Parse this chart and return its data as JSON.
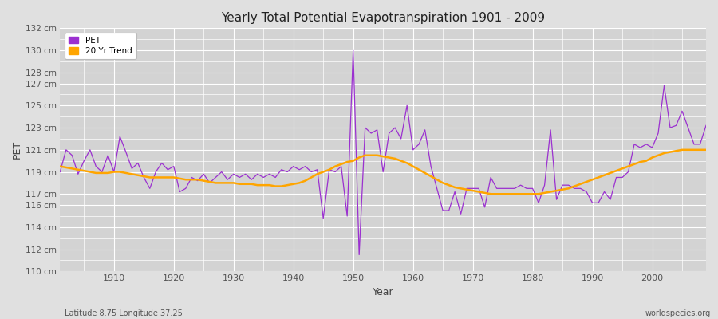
{
  "title": "Yearly Total Potential Evapotranspiration 1901 - 2009",
  "xlabel": "Year",
  "ylabel": "PET",
  "footnote_left": "Latitude 8.75 Longitude 37.25",
  "footnote_right": "worldspecies.org",
  "pet_color": "#9B30D0",
  "trend_color": "#FFA500",
  "fig_bg_color": "#E0E0E0",
  "plot_bg_color": "#D3D3D3",
  "grid_color": "#FFFFFF",
  "ylim": [
    110,
    132
  ],
  "yticks": [
    110,
    112,
    114,
    116,
    117,
    119,
    121,
    123,
    125,
    127,
    128,
    130,
    132
  ],
  "xlim": [
    1901,
    2009
  ],
  "xticks": [
    1910,
    1920,
    1930,
    1940,
    1950,
    1960,
    1970,
    1980,
    1990,
    2000
  ],
  "years": [
    1901,
    1902,
    1903,
    1904,
    1905,
    1906,
    1907,
    1908,
    1909,
    1910,
    1911,
    1912,
    1913,
    1914,
    1915,
    1916,
    1917,
    1918,
    1919,
    1920,
    1921,
    1922,
    1923,
    1924,
    1925,
    1926,
    1927,
    1928,
    1929,
    1930,
    1931,
    1932,
    1933,
    1934,
    1935,
    1936,
    1937,
    1938,
    1939,
    1940,
    1941,
    1942,
    1943,
    1944,
    1945,
    1946,
    1947,
    1948,
    1949,
    1950,
    1951,
    1952,
    1953,
    1954,
    1955,
    1956,
    1957,
    1958,
    1959,
    1960,
    1961,
    1962,
    1963,
    1964,
    1965,
    1966,
    1967,
    1968,
    1969,
    1970,
    1971,
    1972,
    1973,
    1974,
    1975,
    1976,
    1977,
    1978,
    1979,
    1980,
    1981,
    1982,
    1983,
    1984,
    1985,
    1986,
    1987,
    1988,
    1989,
    1990,
    1991,
    1992,
    1993,
    1994,
    1995,
    1996,
    1997,
    1998,
    1999,
    2000,
    2001,
    2002,
    2003,
    2004,
    2005,
    2006,
    2007,
    2008,
    2009
  ],
  "pet_values": [
    119.0,
    121.0,
    120.5,
    118.8,
    120.0,
    121.0,
    119.5,
    119.0,
    120.5,
    119.0,
    122.2,
    120.8,
    119.3,
    119.8,
    118.5,
    117.5,
    119.0,
    119.8,
    119.2,
    119.5,
    117.2,
    117.5,
    118.5,
    118.2,
    118.8,
    118.0,
    118.5,
    119.0,
    118.3,
    118.8,
    118.5,
    118.8,
    118.3,
    118.8,
    118.5,
    118.8,
    118.5,
    119.2,
    119.0,
    119.5,
    119.2,
    119.5,
    119.0,
    119.2,
    114.8,
    119.2,
    119.0,
    119.5,
    115.0,
    130.0,
    111.5,
    123.0,
    122.5,
    122.8,
    119.0,
    122.5,
    123.0,
    122.0,
    125.0,
    121.0,
    121.5,
    122.8,
    119.5,
    117.5,
    115.5,
    115.5,
    117.2,
    115.2,
    117.5,
    117.5,
    117.5,
    115.8,
    118.5,
    117.5,
    117.5,
    117.5,
    117.5,
    117.8,
    117.5,
    117.5,
    116.2,
    117.8,
    122.8,
    116.5,
    117.8,
    117.8,
    117.5,
    117.5,
    117.2,
    116.2,
    116.2,
    117.2,
    116.5,
    118.5,
    118.5,
    119.0,
    121.5,
    121.2,
    121.5,
    121.2,
    122.5,
    126.8,
    123.0,
    123.2,
    124.5,
    123.0,
    121.5,
    121.5,
    123.2
  ],
  "trend_values": [
    119.5,
    119.4,
    119.3,
    119.2,
    119.1,
    119.0,
    118.9,
    118.9,
    118.9,
    119.0,
    119.0,
    118.9,
    118.8,
    118.7,
    118.6,
    118.5,
    118.5,
    118.5,
    118.5,
    118.5,
    118.4,
    118.3,
    118.3,
    118.3,
    118.2,
    118.1,
    118.0,
    118.0,
    118.0,
    118.0,
    117.9,
    117.9,
    117.9,
    117.8,
    117.8,
    117.8,
    117.7,
    117.7,
    117.8,
    117.9,
    118.0,
    118.2,
    118.5,
    118.8,
    119.0,
    119.2,
    119.5,
    119.7,
    119.9,
    120.0,
    120.3,
    120.5,
    120.5,
    120.5,
    120.4,
    120.3,
    120.2,
    120.0,
    119.8,
    119.5,
    119.2,
    118.9,
    118.6,
    118.3,
    118.0,
    117.8,
    117.6,
    117.5,
    117.4,
    117.3,
    117.2,
    117.1,
    117.0,
    117.0,
    117.0,
    117.0,
    117.0,
    117.0,
    117.0,
    117.0,
    117.0,
    117.1,
    117.2,
    117.3,
    117.4,
    117.5,
    117.7,
    117.9,
    118.1,
    118.3,
    118.5,
    118.7,
    118.9,
    119.1,
    119.3,
    119.5,
    119.7,
    119.9,
    120.0,
    120.3,
    120.5,
    120.7,
    120.8,
    120.9,
    121.0,
    121.0,
    121.0,
    121.0,
    121.0
  ]
}
